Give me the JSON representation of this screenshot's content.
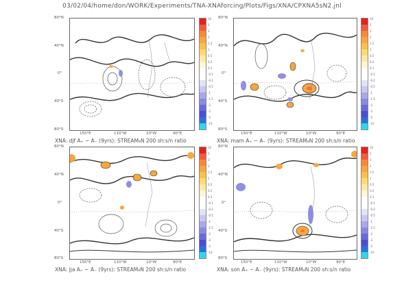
{
  "header": "03/02/04/home/don/WORK/Experiments/TNA-XNAforcing/Plots/Figs/XNA/CPXNA5sN2.jnl",
  "lat_labels": [
    "80°N",
    "40°N",
    "0°",
    "40°S",
    "80°S"
  ],
  "lon_labels": [
    "150°E",
    "110°W",
    "10°W",
    "90°E"
  ],
  "panels": [
    {
      "caption": "XNA: djf A₊ − A₋ (9yrs): STREAM₈N 200 sh:s/n ratio",
      "cbar_labels": [
        "10",
        "5",
        "3",
        "2",
        "1.5",
        "1",
        "0.5",
        "0.2",
        "0.1",
        "-0.1",
        "-0.2",
        "-0.5",
        "-1",
        "-1.5",
        "-2",
        "-3",
        "-5",
        "-10"
      ]
    },
    {
      "caption": "XNA: mam A₊ − A₋ (9yrs): STREAM₈N 200 sh:s/n ratio",
      "cbar_labels": [
        "10",
        "5",
        "3",
        "2",
        "1.5",
        "1",
        "0.5",
        "0.2",
        "0.1",
        "-0.1",
        "-0.2",
        "-0.5",
        "-1",
        "-1.5",
        "-2",
        "-3",
        "-5",
        "-10"
      ]
    },
    {
      "caption": "XNA: jja A₊ − A₋ (9yrs): STREAM₈N 200 sh:s/n ratio",
      "cbar_labels": [
        "10",
        "5",
        "3",
        "2",
        "1.5",
        "1",
        "0.5",
        "0.2",
        "0.1",
        "-0.1",
        "-0.2",
        "-0.5",
        "-1",
        "-1.5",
        "-2",
        "-3",
        "-5",
        "-10"
      ]
    },
    {
      "caption": "XNA: son A₊ − A₋ (9yrs): STREAM₈N 200 sh:s/n ratio",
      "cbar_labels": [
        "10",
        "5",
        "3",
        "2",
        "1.5",
        "1",
        "0.5",
        "0.2",
        "0.1",
        "-0.1",
        "-0.2",
        "-0.5",
        "-1",
        "-1.5",
        "-2",
        "-3",
        "-5",
        "-10"
      ]
    }
  ],
  "colors": {
    "scale": [
      "#e8201c",
      "#f45a3a",
      "#f7883a",
      "#f9a53d",
      "#fbc04a",
      "#fddc6f",
      "#fde9a4",
      "#fff4d3",
      "#ffffff",
      "#ffffff",
      "#e2e2f8",
      "#c8c8f0",
      "#a8a8ea",
      "#8a8ae4",
      "#6a6adc",
      "#4c4cd4",
      "#2f6fdc",
      "#2fd8e8"
    ],
    "positive": "#f7a73c",
    "negative": "#8f8fe4"
  },
  "chart_data": [
    {
      "type": "heatmap",
      "season": "djf",
      "lat_range": [
        "80°S",
        "80°N"
      ],
      "lon_ticks": [
        "150°E",
        "110°W",
        "10°W",
        "90°E"
      ],
      "colorbar": [
        "10",
        "5",
        "3",
        "2",
        "1.5",
        "1",
        "0.5",
        "0.2",
        "0.1",
        "-0.1",
        "-0.2",
        "-0.5",
        "-1",
        "-1.5",
        "-2",
        "-3",
        "-5",
        "-10"
      ]
    },
    {
      "type": "heatmap",
      "season": "mam",
      "lat_range": [
        "80°S",
        "80°N"
      ],
      "lon_ticks": [
        "150°E",
        "110°W",
        "10°W",
        "90°E"
      ],
      "colorbar": [
        "10",
        "5",
        "3",
        "2",
        "1.5",
        "1",
        "0.5",
        "0.2",
        "0.1",
        "-0.1",
        "-0.2",
        "-0.5",
        "-1",
        "-1.5",
        "-2",
        "-3",
        "-5",
        "-10"
      ]
    },
    {
      "type": "heatmap",
      "season": "jja",
      "lat_range": [
        "80°S",
        "80°N"
      ],
      "lon_ticks": [
        "150°E",
        "110°W",
        "10°W",
        "90°E"
      ],
      "colorbar": [
        "10",
        "5",
        "3",
        "2",
        "1.5",
        "1",
        "0.5",
        "0.2",
        "0.1",
        "-0.1",
        "-0.2",
        "-0.5",
        "-1",
        "-1.5",
        "-2",
        "-3",
        "-5",
        "-10"
      ]
    },
    {
      "type": "heatmap",
      "season": "son",
      "lat_range": [
        "80°S",
        "80°N"
      ],
      "lon_ticks": [
        "150°E",
        "110°W",
        "10°W",
        "90°E"
      ],
      "colorbar": [
        "10",
        "5",
        "3",
        "2",
        "1.5",
        "1",
        "0.5",
        "0.2",
        "0.1",
        "-0.1",
        "-0.2",
        "-0.5",
        "-1",
        "-1.5",
        "-2",
        "-3",
        "-5",
        "-10"
      ]
    }
  ]
}
